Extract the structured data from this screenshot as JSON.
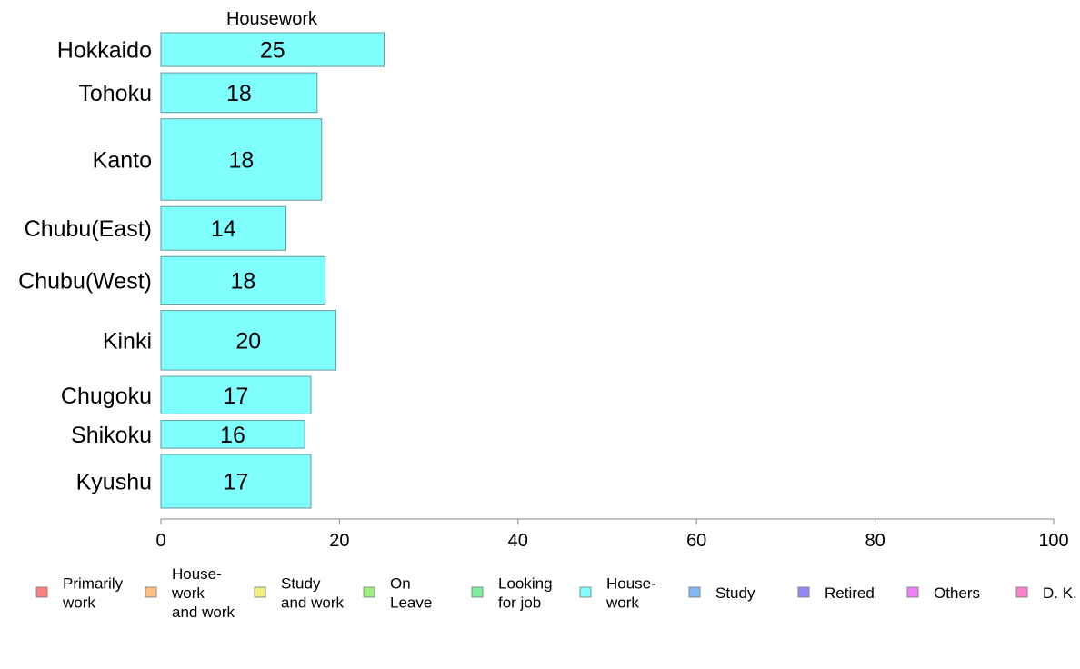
{
  "chart_data": {
    "type": "bar",
    "orientation": "horizontal",
    "title": "Housework",
    "xlim": [
      0,
      100
    ],
    "xticks": [
      "0",
      "20",
      "40",
      "60",
      "80",
      "100"
    ],
    "grid": false,
    "legend_position": "bottom",
    "series": [
      {
        "color": "#80ffff",
        "categories": [
          "Hokkaido",
          "Tohoku",
          "Kanto",
          "Chubu(East)",
          "Chubu(West)",
          "Kinki",
          "Chugoku",
          "Shikoku",
          "Kyushu"
        ],
        "values": [
          25,
          17.5,
          18,
          14,
          18.4,
          19.6,
          16.8,
          16.1,
          16.8
        ],
        "labels": [
          "25",
          "18",
          "18",
          "14",
          "18",
          "20",
          "17",
          "16",
          "17"
        ],
        "relative_sample_size": [
          0.85,
          1.0,
          2.05,
          1.1,
          1.2,
          1.5,
          0.95,
          0.7,
          1.35
        ]
      }
    ],
    "legend": [
      {
        "lines": [
          "Primarily",
          "work"
        ],
        "color": "#ff8080"
      },
      {
        "lines": [
          "House-",
          "work",
          "and work"
        ],
        "color": "#ffc080"
      },
      {
        "lines": [
          "Study",
          "and work"
        ],
        "color": "#f0f080"
      },
      {
        "lines": [
          "On",
          "Leave"
        ],
        "color": "#a0f080"
      },
      {
        "lines": [
          "Looking",
          "for job"
        ],
        "color": "#80f0a0"
      },
      {
        "lines": [
          "House-",
          "work"
        ],
        "color": "#80ffff"
      },
      {
        "lines": [
          "Study"
        ],
        "color": "#80b8f8"
      },
      {
        "lines": [
          "Retired"
        ],
        "color": "#9088f8"
      },
      {
        "lines": [
          "Others"
        ],
        "color": "#f080f8"
      },
      {
        "lines": [
          "D. K."
        ],
        "color": "#ff80c8"
      }
    ]
  }
}
